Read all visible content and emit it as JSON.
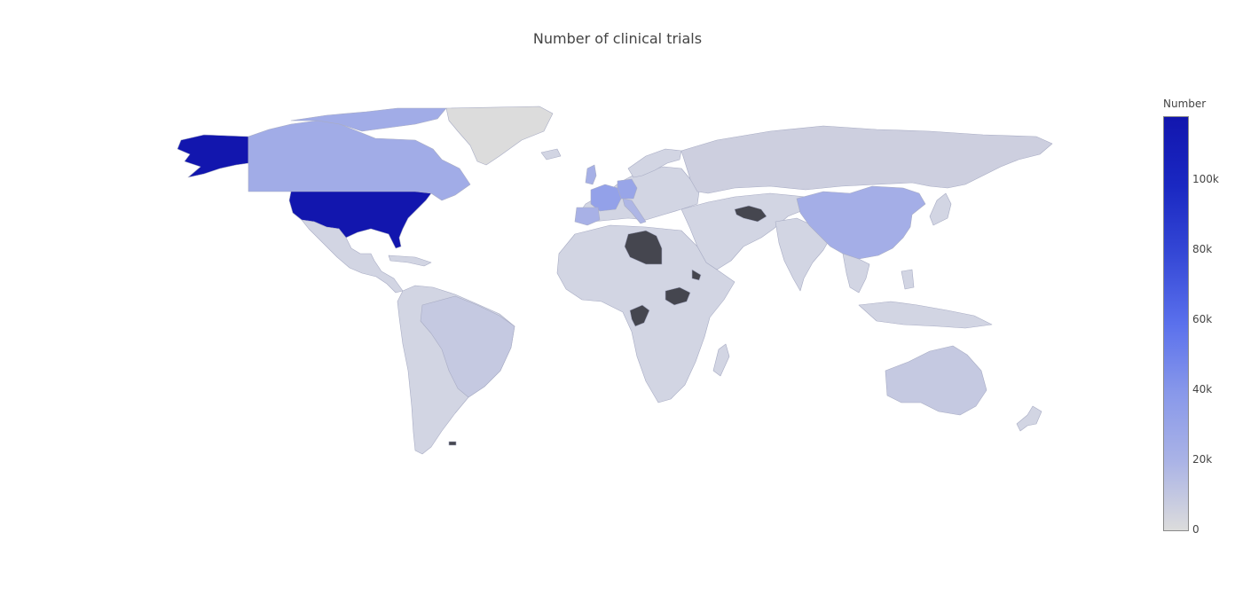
{
  "title": "Number of clinical trials",
  "colorbar": {
    "title": "Number",
    "ticks": [
      "0",
      "20k",
      "40k",
      "60k",
      "80k",
      "100k"
    ],
    "tick_values": [
      0,
      20000,
      40000,
      60000,
      80000,
      100000
    ],
    "max": 118000,
    "colorscale": [
      "#dcdcdc",
      "#aab3e6",
      "#8898ea",
      "#5a70ec",
      "#3548d6",
      "#1a28c2",
      "#1216ae"
    ]
  },
  "colors": {
    "no_data": "#45464f",
    "land_default": "#d2d5e3",
    "border": "#a8acc4"
  },
  "chart_data": {
    "type": "choropleth",
    "title": "Number of clinical trials",
    "colorbar_title": "Number",
    "range": [
      0,
      118000
    ],
    "countries": [
      {
        "name": "United States",
        "value": 118000
      },
      {
        "name": "France",
        "value": 33000
      },
      {
        "name": "Germany",
        "value": 30000
      },
      {
        "name": "Canada",
        "value": 25000
      },
      {
        "name": "China",
        "value": 23000
      },
      {
        "name": "United Kingdom",
        "value": 22000
      },
      {
        "name": "Spain",
        "value": 21000
      },
      {
        "name": "Italy",
        "value": 18000
      },
      {
        "name": "Greenland",
        "value": 0
      },
      {
        "name": "Brazil",
        "value": 9000
      },
      {
        "name": "Australia",
        "value": 9000
      },
      {
        "name": "Russia",
        "value": 6000
      },
      {
        "name": "Libya",
        "value": null
      },
      {
        "name": "South Sudan",
        "value": null
      },
      {
        "name": "Turkmenistan",
        "value": null
      },
      {
        "name": "Republic of the Congo",
        "value": null
      },
      {
        "name": "Eritrea",
        "value": null
      }
    ]
  }
}
